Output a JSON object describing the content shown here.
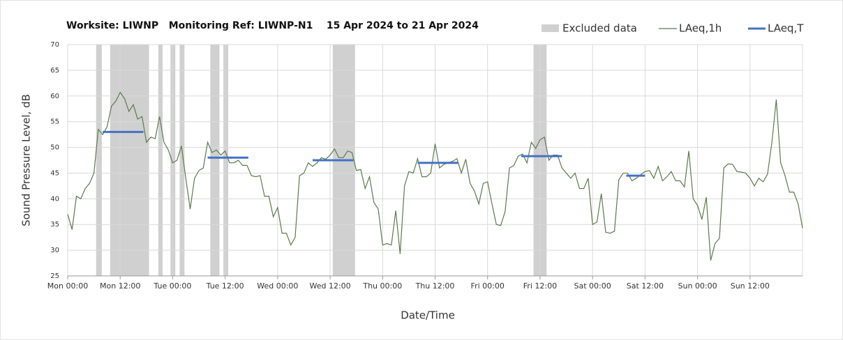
{
  "chart_data": {
    "type": "line",
    "title": "Worksite: LIWNP   Monitoring Ref: LIWNP-N1    15 Apr 2024 to 21 Apr 2024",
    "x_label": "Date/Time",
    "y_label": "Sound Pressure Level, dB",
    "xlim": [
      0,
      168
    ],
    "ylim": [
      25,
      70
    ],
    "xticks": [
      {
        "value": 0,
        "label": "Mon 00:00"
      },
      {
        "value": 12,
        "label": "Mon 12:00"
      },
      {
        "value": 24,
        "label": "Tue 00:00"
      },
      {
        "value": 36,
        "label": "Tue 12:00"
      },
      {
        "value": 48,
        "label": "Wed 00:00"
      },
      {
        "value": 60,
        "label": "Wed 12:00"
      },
      {
        "value": 72,
        "label": "Thu 00:00"
      },
      {
        "value": 84,
        "label": "Thu 12:00"
      },
      {
        "value": 96,
        "label": "Fri 00:00"
      },
      {
        "value": 108,
        "label": "Fri 12:00"
      },
      {
        "value": 120,
        "label": "Sat 00:00"
      },
      {
        "value": 132,
        "label": "Sat 12:00"
      },
      {
        "value": 144,
        "label": "Sun 00:00"
      },
      {
        "value": 156,
        "label": "Sun 12:00"
      }
    ],
    "yticks": [
      25,
      30,
      35,
      40,
      45,
      50,
      55,
      60,
      65,
      70
    ],
    "grid": true,
    "excluded": {
      "name": "Excluded data",
      "color": "#d0d0d0",
      "ranges": [
        [
          6.5,
          7.8
        ],
        [
          9.7,
          18.6
        ],
        [
          20.7,
          21.7
        ],
        [
          23.5,
          24.6
        ],
        [
          25.6,
          26.7
        ],
        [
          32.6,
          34.7
        ],
        [
          35.6,
          36.7
        ],
        [
          60.6,
          65.7
        ],
        [
          106.5,
          109.5
        ]
      ]
    },
    "x": [
      0,
      1,
      2,
      3,
      4,
      5,
      6,
      7,
      8,
      9,
      10,
      11,
      12,
      13,
      14,
      15,
      16,
      17,
      18,
      19,
      20,
      21,
      22,
      23,
      24,
      25,
      26,
      27,
      28,
      29,
      30,
      31,
      32,
      33,
      34,
      35,
      36,
      37,
      38,
      39,
      40,
      41,
      42,
      43,
      44,
      45,
      46,
      47,
      48,
      49,
      50,
      51,
      52,
      53,
      54,
      55,
      56,
      57,
      58,
      59,
      60,
      61,
      62,
      63,
      64,
      65,
      66,
      67,
      68,
      69,
      70,
      71,
      72,
      73,
      74,
      75,
      76,
      77,
      78,
      79,
      80,
      81,
      82,
      83,
      84,
      85,
      86,
      87,
      88,
      89,
      90,
      91,
      92,
      93,
      94,
      95,
      96,
      97,
      98,
      99,
      100,
      101,
      102,
      103,
      104,
      105,
      106,
      107,
      108,
      109,
      110,
      111,
      112,
      113,
      114,
      115,
      116,
      117,
      118,
      119,
      120,
      121,
      122,
      123,
      124,
      125,
      126,
      127,
      128,
      129,
      130,
      131,
      132,
      133,
      134,
      135,
      136,
      137,
      138,
      139,
      140,
      141,
      142,
      143,
      144,
      145,
      146,
      147,
      148,
      149,
      150,
      151,
      152,
      153,
      154,
      155,
      156,
      157,
      158,
      159,
      160,
      161,
      162,
      163,
      164,
      165,
      166,
      167,
      168
    ],
    "series": [
      {
        "name": "LAeq,1h",
        "color": "#5b7a4c",
        "values": [
          37,
          34,
          40.5,
          40,
          42,
          43,
          45,
          53.5,
          52.5,
          54,
          58,
          59,
          60.7,
          59.5,
          57,
          58.3,
          55.5,
          56,
          51,
          52,
          51.7,
          56,
          51,
          49.5,
          47,
          47.5,
          50.3,
          44,
          38,
          44,
          45.5,
          46,
          51,
          49,
          49.5,
          48.5,
          49.3,
          47,
          47,
          47.5,
          46.5,
          46.5,
          44.5,
          44.3,
          44.5,
          40.5,
          40.5,
          36.5,
          38.3,
          33.3,
          33.3,
          31,
          32.5,
          44.5,
          45,
          47,
          46.3,
          47,
          48,
          47.7,
          48.5,
          49.7,
          48,
          48,
          49.3,
          49,
          45.5,
          45.7,
          42,
          44.3,
          39.3,
          38,
          31,
          31.3,
          31,
          37.7,
          29.3,
          42.5,
          45.3,
          45,
          47.8,
          44.3,
          44.3,
          45,
          50.7,
          46,
          46.7,
          47,
          47.3,
          47.8,
          45,
          47.7,
          43,
          41.5,
          39,
          43,
          43.3,
          39,
          35,
          34.8,
          37.5,
          46,
          46.5,
          48.3,
          48.7,
          47,
          51,
          49.8,
          51.5,
          52,
          47.5,
          48.5,
          48.5,
          46,
          45,
          44,
          45,
          42,
          42,
          44,
          35,
          35.5,
          41,
          33.5,
          33.3,
          33.7,
          43.7,
          45,
          45,
          43.5,
          44,
          44.7,
          45.3,
          45.5,
          44,
          46.3,
          43.5,
          44.3,
          45.3,
          43.5,
          43.5,
          42.3,
          49.3,
          40,
          38.7,
          36,
          40.3,
          28,
          31.3,
          32.3,
          46,
          46.8,
          46.7,
          45.3,
          45.2,
          45,
          44,
          42.5,
          44,
          43.3,
          44.8,
          51,
          59.3,
          47,
          44.5,
          41.3,
          41.3,
          39,
          34.3
        ]
      },
      {
        "name": "LAeq,T",
        "color": "#4472c4",
        "segments": [
          {
            "x": [
              8,
              17.3
            ],
            "value": 53
          },
          {
            "x": [
              32,
              41.3
            ],
            "value": 48
          },
          {
            "x": [
              56,
              65.3
            ],
            "value": 47.5
          },
          {
            "x": [
              80,
              89.3
            ],
            "value": 47
          },
          {
            "x": [
              103.7,
              113
            ],
            "value": 48.3
          },
          {
            "x": [
              127.7,
              132
            ],
            "value": 44.5
          }
        ]
      }
    ]
  }
}
